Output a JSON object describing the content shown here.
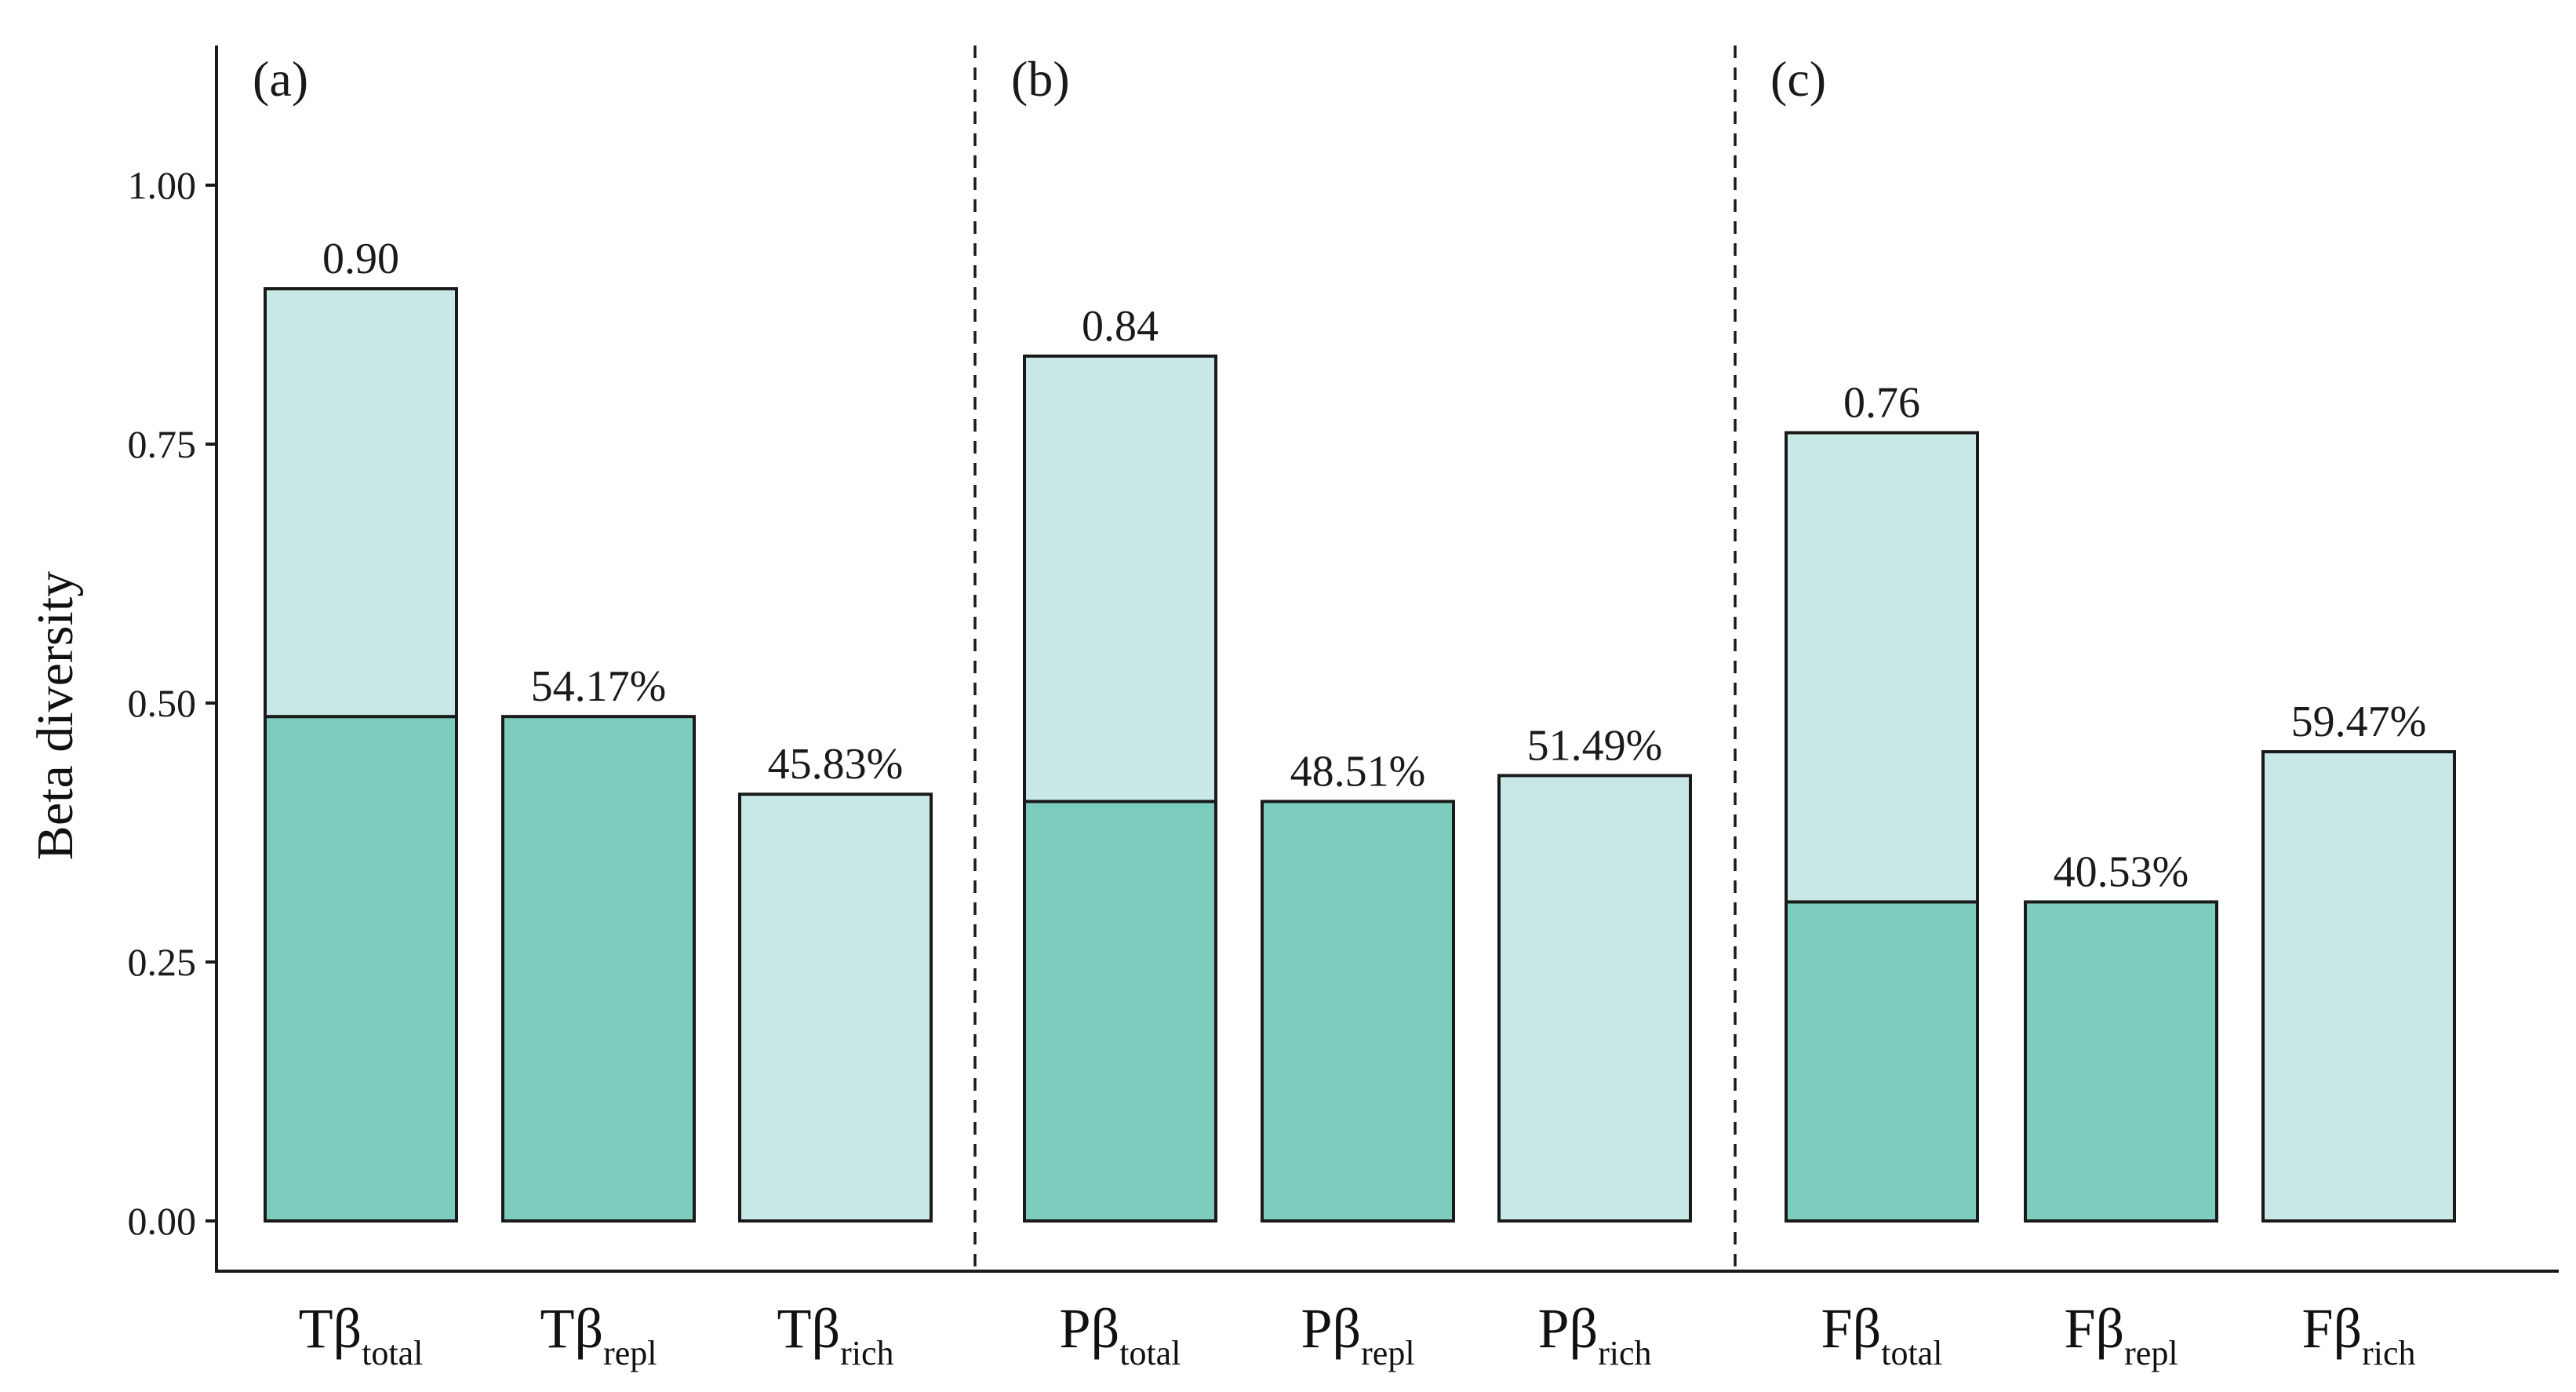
{
  "chart_data": {
    "type": "bar",
    "ylabel": "Beta diversity",
    "ylim": [
      0,
      1.1
    ],
    "yticks": [
      "0.00",
      "0.25",
      "0.50",
      "0.75",
      "1.00"
    ],
    "colors": {
      "replacement": "#7dcdbf",
      "richness": "#c8e8e5",
      "stroke": "#1a1a1a"
    },
    "panels": [
      {
        "label": "(a)",
        "bars": [
          {
            "prefix": "Tβ",
            "sub": "total",
            "lower": 0.487,
            "upper": 0.9,
            "label": "0.90"
          },
          {
            "prefix": "Tβ",
            "sub": "repl",
            "value": 0.487,
            "kind": "replacement",
            "label": "54.17%"
          },
          {
            "prefix": "Tβ",
            "sub": "rich",
            "value": 0.412,
            "kind": "richness",
            "label": "45.83%"
          }
        ]
      },
      {
        "label": "(b)",
        "bars": [
          {
            "prefix": "Pβ",
            "sub": "total",
            "lower": 0.405,
            "upper": 0.835,
            "label": "0.84"
          },
          {
            "prefix": "Pβ",
            "sub": "repl",
            "value": 0.405,
            "kind": "replacement",
            "label": "48.51%"
          },
          {
            "prefix": "Pβ",
            "sub": "rich",
            "value": 0.43,
            "kind": "richness",
            "label": "51.49%"
          }
        ]
      },
      {
        "label": "(c)",
        "bars": [
          {
            "prefix": "Fβ",
            "sub": "total",
            "lower": 0.308,
            "upper": 0.761,
            "label": "0.76"
          },
          {
            "prefix": "Fβ",
            "sub": "repl",
            "value": 0.308,
            "kind": "replacement",
            "label": "40.53%"
          },
          {
            "prefix": "Fβ",
            "sub": "rich",
            "value": 0.453,
            "kind": "richness",
            "label": "59.47%"
          }
        ]
      }
    ]
  }
}
